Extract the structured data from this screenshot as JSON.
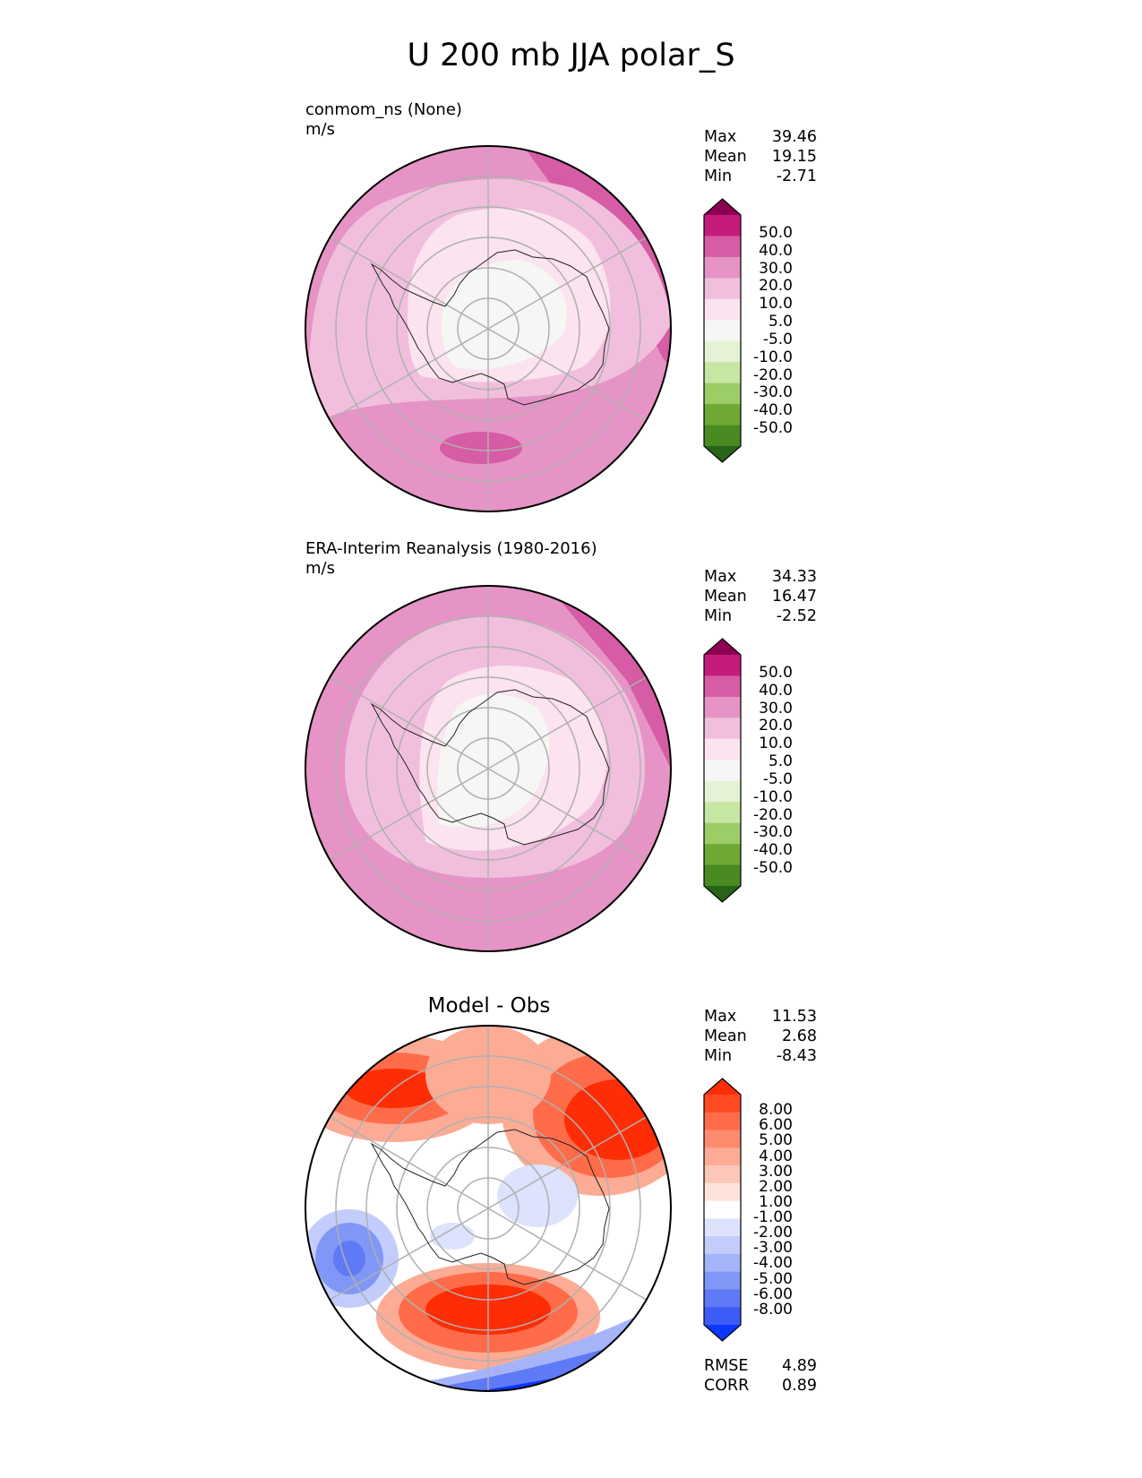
{
  "chart_data": {
    "type": "polar-contour",
    "title": "U 200 mb JJA polar_S",
    "panels": [
      {
        "title": "conmom_ns (None)",
        "units": "m/s",
        "stats": {
          "max_label": "Max",
          "max": "39.46",
          "mean_label": "Mean",
          "mean": "19.15",
          "min_label": "Min",
          "min": "-2.71"
        },
        "colorbar_ticks": [
          "50.0",
          "40.0",
          "30.0",
          "20.0",
          "10.0",
          "5.0",
          "-5.0",
          "-10.0",
          "-20.0",
          "-30.0",
          "-40.0",
          "-50.0"
        ],
        "colorbar_colors": [
          "#8e0152",
          "#c51b7d",
          "#d65ca5",
          "#e594c5",
          "#f1bfdd",
          "#fbe3ef",
          "#f6f6f4",
          "#e5f2d5",
          "#c8e6a3",
          "#9ccd67",
          "#6ea935",
          "#4a8a23",
          "#276419"
        ],
        "fill_colors": {
          "outer": "#e594c5",
          "band": "#f1bfdd",
          "inner": "#fbe3ef",
          "core": "#f6f6f4",
          "strong": "#d65ca5"
        }
      },
      {
        "title": "ERA-Interim Reanalysis (1980-2016)",
        "units": "m/s",
        "stats": {
          "max_label": "Max",
          "max": "34.33",
          "mean_label": "Mean",
          "mean": "16.47",
          "min_label": "Min",
          "min": "-2.52"
        },
        "colorbar_ticks": [
          "50.0",
          "40.0",
          "30.0",
          "20.0",
          "10.0",
          "5.0",
          "-5.0",
          "-10.0",
          "-20.0",
          "-30.0",
          "-40.0",
          "-50.0"
        ],
        "colorbar_colors": [
          "#8e0152",
          "#c51b7d",
          "#d65ca5",
          "#e594c5",
          "#f1bfdd",
          "#fbe3ef",
          "#f6f6f4",
          "#e5f2d5",
          "#c8e6a3",
          "#9ccd67",
          "#6ea935",
          "#4a8a23",
          "#276419"
        ],
        "fill_colors": {
          "outer": "#e594c5",
          "band": "#f1bfdd",
          "inner": "#fbe3ef",
          "core": "#f6f6f4",
          "strong": "#d65ca5"
        }
      },
      {
        "title": "Model - Obs",
        "stats": {
          "max_label": "Max",
          "max": "11.53",
          "mean_label": "Mean",
          "mean": "2.68",
          "min_label": "Min",
          "min": "-8.43"
        },
        "colorbar_ticks": [
          "8.00",
          "6.00",
          "5.00",
          "4.00",
          "3.00",
          "2.00",
          "1.00",
          "-1.00",
          "-2.00",
          "-3.00",
          "-4.00",
          "-5.00",
          "-6.00",
          "-8.00"
        ],
        "colorbar_colors": [
          "#ff2d05",
          "#ff4a22",
          "#ff6c4a",
          "#ff8b6e",
          "#fcab95",
          "#fbc7b8",
          "#fde3dc",
          "#ffffff",
          "#dde3fd",
          "#c3cdfb",
          "#a5b4f8",
          "#8197f7",
          "#5f7af6",
          "#3d5bf6",
          "#0a37ff"
        ],
        "rmse_label": "RMSE",
        "rmse": "4.89",
        "corr_label": "CORR",
        "corr": "0.89"
      }
    ]
  }
}
